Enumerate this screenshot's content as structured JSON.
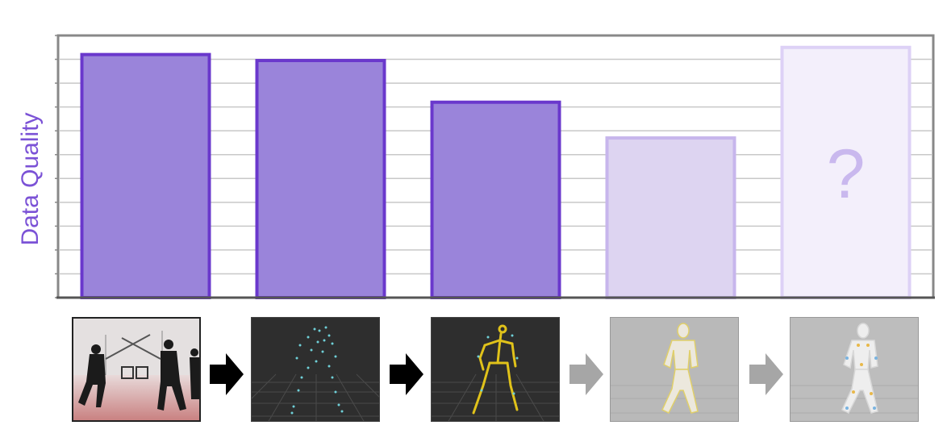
{
  "chart_data": {
    "type": "bar",
    "title": "",
    "xlabel": "",
    "ylabel": "Data Quality",
    "ylim": [
      0,
      11
    ],
    "gridlines": 11,
    "categories": [
      "",
      "",
      "",
      "",
      ""
    ],
    "values": [
      10.2,
      9.95,
      8.2,
      6.7,
      10.5
    ],
    "annotation": "?",
    "colors": {
      "bar_fill": "#9a84da",
      "bar_edge": "#6a38cc",
      "faded_fill": "#ddd4f1",
      "faded_edge": "#c7b6ec",
      "question_fill": "#f3effb",
      "question_edge": "#ddd1f6",
      "question_text": "#c9b8ee",
      "frame": "#888888",
      "grid": "#c8c8c8"
    },
    "bar_styles": [
      "solid",
      "solid",
      "solid",
      "faded",
      "question"
    ]
  },
  "thumbnails": [
    {
      "icon": "mocap-photo-thumbnail"
    },
    {
      "icon": "marker-point-cloud-thumbnail"
    },
    {
      "icon": "skeleton-thumbnail"
    },
    {
      "icon": "body-mesh-thumbnail"
    },
    {
      "icon": "body-mesh-markers-thumbnail"
    }
  ],
  "arrows": [
    {
      "icon": "arrow-right-icon",
      "color": "#000000"
    },
    {
      "icon": "arrow-right-icon",
      "color": "#000000"
    },
    {
      "icon": "arrow-right-icon",
      "color": "#a6a6a6"
    },
    {
      "icon": "arrow-right-icon",
      "color": "#a6a6a6"
    }
  ]
}
